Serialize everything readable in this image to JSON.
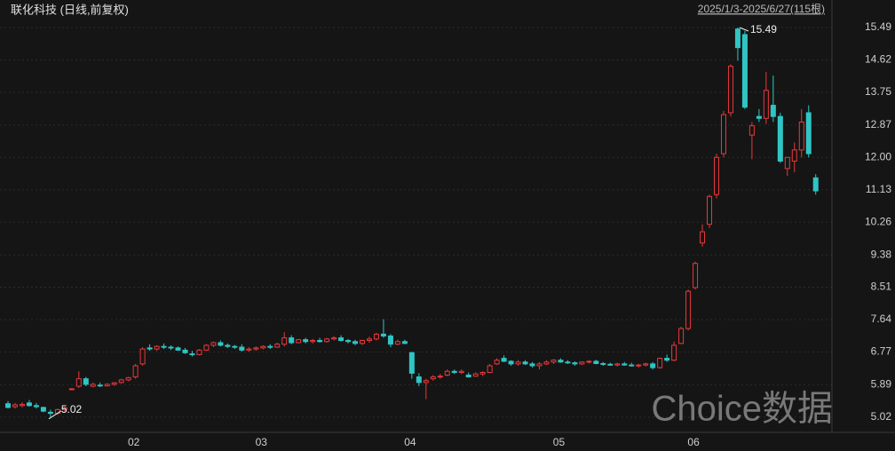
{
  "chart_data": {
    "type": "candlestick",
    "title": "联化科技 (日线,前复权)",
    "range_label": "2025/1/3-2025/6/27(115根)",
    "watermark": "Choice数据",
    "max_label": 15.49,
    "min_label": 5.02,
    "up_color": "#e8393b",
    "down_color": "#30c5c5",
    "categories": [
      null,
      null,
      null,
      null,
      null,
      null,
      null,
      null,
      null,
      null,
      null,
      null,
      null,
      null,
      null,
      null,
      null,
      "02",
      null,
      null,
      null,
      null,
      null,
      null,
      null,
      null,
      null,
      null,
      null,
      null,
      null,
      null,
      null,
      null,
      null,
      "03",
      null,
      null,
      null,
      null,
      null,
      null,
      null,
      null,
      null,
      null,
      null,
      null,
      null,
      null,
      null,
      null,
      null,
      null,
      null,
      null,
      "04",
      null,
      null,
      null,
      null,
      null,
      null,
      null,
      null,
      null,
      null,
      null,
      null,
      null,
      null,
      null,
      null,
      null,
      null,
      null,
      null,
      "05",
      null,
      null,
      null,
      null,
      null,
      null,
      null,
      null,
      null,
      null,
      null,
      null,
      null,
      null,
      null,
      null,
      null,
      null,
      "06",
      null,
      null,
      null,
      null,
      null,
      null,
      null,
      null,
      null,
      null,
      null,
      null,
      null,
      null,
      null,
      null,
      null,
      null
    ],
    "open": [
      5.38,
      5.3,
      5.33,
      5.4,
      5.33,
      5.28,
      5.15,
      5.12,
      5.22,
      5.76,
      5.85,
      6.05,
      5.85,
      5.88,
      5.86,
      5.9,
      5.95,
      6.02,
      6.1,
      6.45,
      6.88,
      6.85,
      6.92,
      6.9,
      6.88,
      6.82,
      6.72,
      6.7,
      6.82,
      6.95,
      7.02,
      6.95,
      6.92,
      6.9,
      6.82,
      6.85,
      6.88,
      6.92,
      6.9,
      6.98,
      7.15,
      7.02,
      7.1,
      7.05,
      7.08,
      7.05,
      7.12,
      7.15,
      7.08,
      7.05,
      7.0,
      7.08,
      7.12,
      7.25,
      7.2,
      6.98,
      7.05,
      6.75,
      6.1,
      5.95,
      6.05,
      6.1,
      6.15,
      6.25,
      6.22,
      6.15,
      6.12,
      6.18,
      6.22,
      6.45,
      6.6,
      6.52,
      6.45,
      6.5,
      6.45,
      6.4,
      6.45,
      6.5,
      6.55,
      6.5,
      6.48,
      6.45,
      6.5,
      6.52,
      6.46,
      6.44,
      6.42,
      6.45,
      6.42,
      6.4,
      6.42,
      6.45,
      6.35,
      6.6,
      6.55,
      7.0,
      7.4,
      8.5,
      9.7,
      10.2,
      11.0,
      12.1,
      13.2,
      15.45,
      15.3,
      12.6,
      13.1,
      13.05,
      13.4,
      13.1,
      11.7,
      11.9,
      12.2,
      13.2,
      11.45
    ],
    "high": [
      5.45,
      5.4,
      5.42,
      5.48,
      5.4,
      5.3,
      5.22,
      5.25,
      5.3,
      5.8,
      6.25,
      6.1,
      5.95,
      5.95,
      5.93,
      5.96,
      6.05,
      6.1,
      6.45,
      6.9,
      6.98,
      6.95,
      7.0,
      6.95,
      6.92,
      6.88,
      6.8,
      6.85,
      6.98,
      7.05,
      7.08,
      7.0,
      6.96,
      6.98,
      6.9,
      6.92,
      6.95,
      6.98,
      7.02,
      7.3,
      7.22,
      7.12,
      7.15,
      7.12,
      7.15,
      7.15,
      7.2,
      7.22,
      7.12,
      7.1,
      7.1,
      7.18,
      7.28,
      7.65,
      7.25,
      7.1,
      7.1,
      6.78,
      6.2,
      6.05,
      6.15,
      6.18,
      6.3,
      6.3,
      6.3,
      6.22,
      6.22,
      6.25,
      6.45,
      6.6,
      6.68,
      6.55,
      6.55,
      6.55,
      6.5,
      6.5,
      6.55,
      6.58,
      6.6,
      6.55,
      6.52,
      6.52,
      6.55,
      6.56,
      6.5,
      6.48,
      6.48,
      6.5,
      6.48,
      6.45,
      6.48,
      6.5,
      6.62,
      6.7,
      7.05,
      7.45,
      8.45,
      9.2,
      10.2,
      11.0,
      12.1,
      13.25,
      14.5,
      15.49,
      15.4,
      12.95,
      13.3,
      14.3,
      14.2,
      13.2,
      12.0,
      12.4,
      13.3,
      13.4,
      11.55
    ],
    "low": [
      5.25,
      5.25,
      5.28,
      5.3,
      5.25,
      5.15,
      5.02,
      5.08,
      5.15,
      5.74,
      5.8,
      5.85,
      5.82,
      5.83,
      5.84,
      5.86,
      5.92,
      5.98,
      6.05,
      6.4,
      6.8,
      6.8,
      6.85,
      6.82,
      6.8,
      6.72,
      6.65,
      6.68,
      6.8,
      6.9,
      6.92,
      6.88,
      6.85,
      6.78,
      6.78,
      6.8,
      6.84,
      6.85,
      6.88,
      6.92,
      6.98,
      7.0,
      7.0,
      7.0,
      7.02,
      7.02,
      7.08,
      7.05,
      7.0,
      6.95,
      6.96,
      7.02,
      7.08,
      7.15,
      6.9,
      6.95,
      6.98,
      6.05,
      5.85,
      5.5,
      6.0,
      6.05,
      6.12,
      6.18,
      6.18,
      6.08,
      6.1,
      6.12,
      6.2,
      6.42,
      6.5,
      6.4,
      6.4,
      6.42,
      6.35,
      6.3,
      6.42,
      6.45,
      6.48,
      6.45,
      6.4,
      6.42,
      6.46,
      6.44,
      6.4,
      6.4,
      6.38,
      6.4,
      6.38,
      6.35,
      6.38,
      6.3,
      6.32,
      6.5,
      6.52,
      6.98,
      7.35,
      8.45,
      9.6,
      10.1,
      10.9,
      12.0,
      13.1,
      14.6,
      13.3,
      11.95,
      12.95,
      12.9,
      12.95,
      11.85,
      11.5,
      11.6,
      12.0,
      12.0,
      11.0
    ],
    "close": [
      5.28,
      5.35,
      5.36,
      5.33,
      5.3,
      5.18,
      5.12,
      5.22,
      5.27,
      5.78,
      6.05,
      5.9,
      5.9,
      5.86,
      5.9,
      5.94,
      6.02,
      6.08,
      6.4,
      6.85,
      6.85,
      6.92,
      6.9,
      6.88,
      6.82,
      6.75,
      6.7,
      6.82,
      6.95,
      7.02,
      6.95,
      6.92,
      6.9,
      6.82,
      6.85,
      6.88,
      6.92,
      6.9,
      6.98,
      7.15,
      7.02,
      7.1,
      7.05,
      7.08,
      7.05,
      7.12,
      7.15,
      7.08,
      7.05,
      7.0,
      7.08,
      7.12,
      7.25,
      7.2,
      6.98,
      7.05,
      7.0,
      6.2,
      5.95,
      6.0,
      6.1,
      6.12,
      6.25,
      6.22,
      6.25,
      6.1,
      6.18,
      6.22,
      6.4,
      6.55,
      6.52,
      6.45,
      6.5,
      6.45,
      6.4,
      6.45,
      6.5,
      6.55,
      6.5,
      6.48,
      6.45,
      6.5,
      6.52,
      6.46,
      6.44,
      6.42,
      6.45,
      6.42,
      6.4,
      6.42,
      6.45,
      6.35,
      6.6,
      6.55,
      6.95,
      7.4,
      8.4,
      9.15,
      10.0,
      10.95,
      12.0,
      13.15,
      14.45,
      14.95,
      13.35,
      12.85,
      13.05,
      13.8,
      13.1,
      11.9,
      12.0,
      12.2,
      12.95,
      12.1,
      11.1
    ],
    "ylim": [
      4.61,
      16.23
    ],
    "yticks": [
      15.49,
      14.62,
      13.75,
      12.87,
      {
        "value": 12,
        "label": "12.00"
      },
      11.13,
      10.26,
      9.38,
      8.51,
      7.64,
      6.77,
      5.89,
      5.02
    ],
    "grid": true
  }
}
